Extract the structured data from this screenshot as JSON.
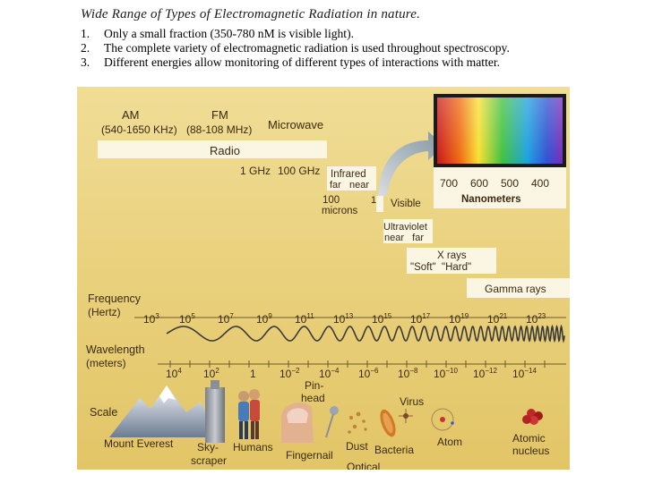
{
  "slide": {
    "title": "Wide Range of Types of Electromagnetic Radiation in nature.",
    "bullets": [
      {
        "num": "1.",
        "text": "Only a small fraction (350-780 nM is visible light)."
      },
      {
        "num": "2.",
        "text": "The complete variety of electromagnetic radiation is used throughout spectroscopy."
      },
      {
        "num": "3.",
        "text": "Different energies allow monitoring of different types of interactions with matter."
      }
    ]
  },
  "figure": {
    "bands": {
      "am": {
        "name": "AM",
        "range": "(540-1650 KHz)"
      },
      "fm": {
        "name": "FM",
        "range": "(88-108 MHz)"
      },
      "microwave": "Microwave",
      "radio": "Radio",
      "ghz_1": "1 GHz",
      "ghz_100": "100 GHz",
      "infrared": {
        "name": "Infrared",
        "sub": "far   near"
      },
      "microns": {
        "value": "100",
        "unit": "microns",
        "one": "1"
      },
      "visible": "Visible",
      "ultraviolet": {
        "name": "Ultraviolet",
        "sub": "near   far"
      },
      "xrays": {
        "name": "X rays",
        "sub": "\"Soft\"  \"Hard\""
      },
      "gamma": "Gamma rays"
    },
    "nanometers": {
      "ticks": [
        "700",
        "600",
        "500",
        "400"
      ],
      "label": "Nanometers"
    },
    "frequency": {
      "label_1": "Frequency",
      "label_2": "(Hertz)",
      "ticks": [
        {
          "base": "10",
          "exp": "3"
        },
        {
          "base": "10",
          "exp": "5"
        },
        {
          "base": "10",
          "exp": "7"
        },
        {
          "base": "10",
          "exp": "9"
        },
        {
          "base": "10",
          "exp": "11"
        },
        {
          "base": "10",
          "exp": "13"
        },
        {
          "base": "10",
          "exp": "15"
        },
        {
          "base": "10",
          "exp": "17"
        },
        {
          "base": "10",
          "exp": "19"
        },
        {
          "base": "10",
          "exp": "21"
        },
        {
          "base": "10",
          "exp": "23"
        }
      ]
    },
    "wavelength": {
      "label_1": "Wavelength",
      "label_2": "(meters)",
      "ticks": [
        {
          "base": "10",
          "exp": "4"
        },
        {
          "base": "10",
          "exp": "2"
        },
        {
          "base": "1",
          "exp": ""
        },
        {
          "base": "10",
          "exp": "−2"
        },
        {
          "base": "10",
          "exp": "−4"
        },
        {
          "base": "10",
          "exp": "−6"
        },
        {
          "base": "10",
          "exp": "−8"
        },
        {
          "base": "10",
          "exp": "−10"
        },
        {
          "base": "10",
          "exp": "−12"
        },
        {
          "base": "10",
          "exp": "−14"
        }
      ]
    },
    "scale": {
      "label": "Scale",
      "objects": {
        "everest": "Mount Everest",
        "sky_1": "Sky-",
        "sky_2": "scraper",
        "humans": "Humans",
        "pin_1": "Pin-",
        "pin_2": "head",
        "fingernail": "Fingernail",
        "dust": "Dust",
        "optical": "Optical",
        "virus": "Virus",
        "bacteria": "Bacteria",
        "atom": "Atom",
        "nucleus_1": "Atomic",
        "nucleus_2": "nucleus"
      }
    }
  },
  "colors": {
    "figure_bg": "#e9d07c",
    "band_box": "#ffffff",
    "text": "#3a2a10",
    "arrow": "#8fa3ad",
    "wave": "#3a3a3a"
  }
}
